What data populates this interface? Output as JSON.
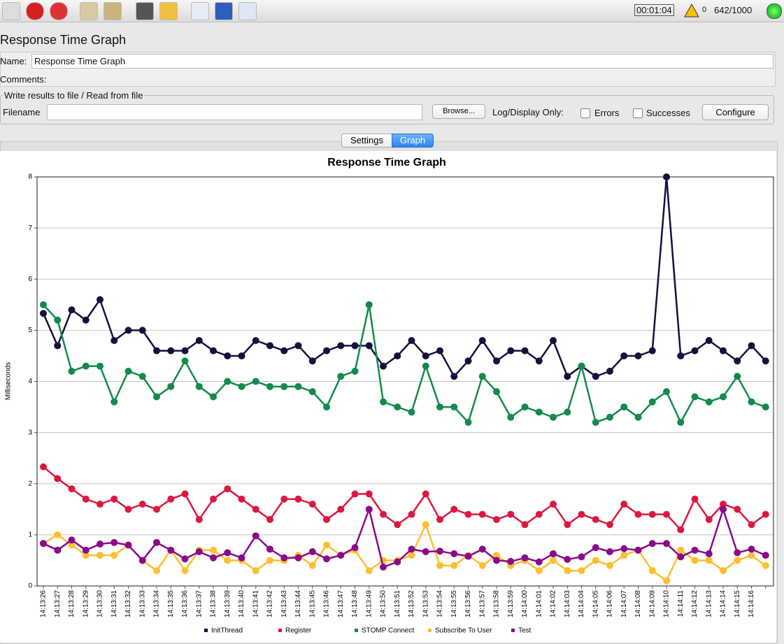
{
  "toolbar": {
    "timer": "00:01:04",
    "warnings": "0",
    "threads": "642/1000"
  },
  "panel": {
    "title": "Response Time Graph",
    "name_label": "Name:",
    "name_value": "Response Time Graph",
    "comments_label": "Comments:"
  },
  "file": {
    "legend": "Write results to file / Read from file",
    "filename_label": "Filename",
    "browse": "Browse...",
    "log_label": "Log/Display Only:",
    "errors": "Errors",
    "successes": "Successes",
    "configure": "Configure"
  },
  "tabs": [
    "Settings",
    "Graph"
  ],
  "chart_data": {
    "type": "line",
    "title": "Response Time Graph",
    "y_label": "Milliseconds",
    "categories": [
      "14:13:26",
      "14:13:27",
      "14:13:28",
      "14:13:29",
      "14:13:30",
      "14:13:31",
      "14:13:32",
      "14:13:33",
      "14:13:34",
      "14:13:35",
      "14:13:36",
      "14:13:37",
      "14:13:38",
      "14:13:39",
      "14:13:40",
      "14:13:41",
      "14:13:42",
      "14:13:43",
      "14:13:44",
      "14:13:45",
      "14:13:46",
      "14:13:47",
      "14:13:48",
      "14:13:49",
      "14:13:50",
      "14:13:51",
      "14:13:52",
      "14:13:53",
      "14:13:54",
      "14:13:55",
      "14:13:56",
      "14:13:57",
      "14:13:58",
      "14:13:59",
      "14:14:00",
      "14:14:01",
      "14:14:02",
      "14:14:03",
      "14:14:04",
      "14:14:05",
      "14:14:06",
      "14:14:07",
      "14:14:08",
      "14:14:09",
      "14:14:10",
      "14:14:11",
      "14:14:12",
      "14:14:13",
      "14:14:14",
      "14:14:15",
      "14:14:16",
      null
    ],
    "ylim": [
      0,
      8
    ],
    "yticks": [
      0,
      1,
      2,
      3,
      4,
      5,
      6,
      7,
      8
    ],
    "grid": true,
    "series": [
      {
        "name": "InitThread",
        "color": "#15103f",
        "values": [
          5.33,
          4.7,
          5.4,
          5.2,
          5.6,
          4.8,
          5.0,
          5.0,
          4.6,
          4.6,
          4.6,
          4.8,
          4.6,
          4.5,
          4.5,
          4.8,
          4.7,
          4.6,
          4.7,
          4.4,
          4.6,
          4.7,
          4.7,
          4.7,
          4.3,
          4.5,
          4.8,
          4.5,
          4.6,
          4.1,
          4.4,
          4.8,
          4.4,
          4.6,
          4.6,
          4.4,
          4.8,
          4.1,
          4.3,
          4.1,
          4.2,
          4.5,
          4.5,
          4.6,
          8.0,
          4.5,
          4.6,
          4.8,
          4.6,
          4.4,
          4.7,
          4.4
        ]
      },
      {
        "name": "Register",
        "color": "#dc1840",
        "values": [
          2.33,
          2.1,
          1.9,
          1.7,
          1.6,
          1.7,
          1.5,
          1.6,
          1.5,
          1.7,
          1.8,
          1.3,
          1.7,
          1.9,
          1.7,
          1.5,
          1.3,
          1.7,
          1.7,
          1.6,
          1.3,
          1.5,
          1.8,
          1.8,
          1.4,
          1.2,
          1.4,
          1.8,
          1.3,
          1.5,
          1.4,
          1.4,
          1.3,
          1.4,
          1.2,
          1.4,
          1.6,
          1.2,
          1.4,
          1.3,
          1.2,
          1.6,
          1.4,
          1.4,
          1.4,
          1.1,
          1.7,
          1.3,
          1.6,
          1.5,
          1.2,
          1.4
        ]
      },
      {
        "name": "STOMP Connect",
        "color": "#128a4c",
        "values": [
          5.5,
          5.2,
          4.2,
          4.3,
          4.3,
          3.6,
          4.2,
          4.1,
          3.7,
          3.9,
          4.4,
          3.9,
          3.7,
          4.0,
          3.9,
          4.0,
          3.9,
          3.9,
          3.9,
          3.8,
          3.5,
          4.1,
          4.2,
          5.5,
          3.6,
          3.5,
          3.4,
          4.3,
          3.5,
          3.5,
          3.2,
          4.1,
          3.8,
          3.3,
          3.5,
          3.4,
          3.3,
          3.4,
          4.3,
          3.2,
          3.3,
          3.5,
          3.3,
          3.6,
          3.8,
          3.2,
          3.7,
          3.6,
          3.7,
          4.1,
          3.6,
          3.5
        ]
      },
      {
        "name": "Subscribe To User",
        "color": "#fcbf30",
        "values": [
          0.83,
          1.0,
          0.8,
          0.6,
          0.6,
          0.6,
          0.8,
          0.5,
          0.3,
          0.7,
          0.3,
          0.7,
          0.7,
          0.5,
          0.5,
          0.3,
          0.5,
          0.5,
          0.6,
          0.4,
          0.8,
          0.6,
          0.7,
          0.3,
          0.5,
          0.5,
          0.6,
          1.2,
          0.4,
          0.4,
          0.6,
          0.4,
          0.6,
          0.4,
          0.5,
          0.3,
          0.5,
          0.3,
          0.3,
          0.5,
          0.4,
          0.6,
          0.7,
          0.3,
          0.1,
          0.7,
          0.5,
          0.5,
          0.3,
          0.5,
          0.6,
          0.4
        ]
      },
      {
        "name": "Test",
        "color": "#8a0a8a",
        "values": [
          0.83,
          0.7,
          0.9,
          0.7,
          0.82,
          0.85,
          0.8,
          0.5,
          0.85,
          0.7,
          0.53,
          0.67,
          0.55,
          0.65,
          0.55,
          0.98,
          0.72,
          0.55,
          0.55,
          0.67,
          0.53,
          0.6,
          0.75,
          1.5,
          0.37,
          0.47,
          0.72,
          0.67,
          0.68,
          0.63,
          0.58,
          0.72,
          0.5,
          0.48,
          0.55,
          0.47,
          0.63,
          0.52,
          0.57,
          0.75,
          0.67,
          0.73,
          0.7,
          0.83,
          0.83,
          0.57,
          0.7,
          0.63,
          1.5,
          0.65,
          0.72,
          0.6
        ]
      }
    ]
  }
}
